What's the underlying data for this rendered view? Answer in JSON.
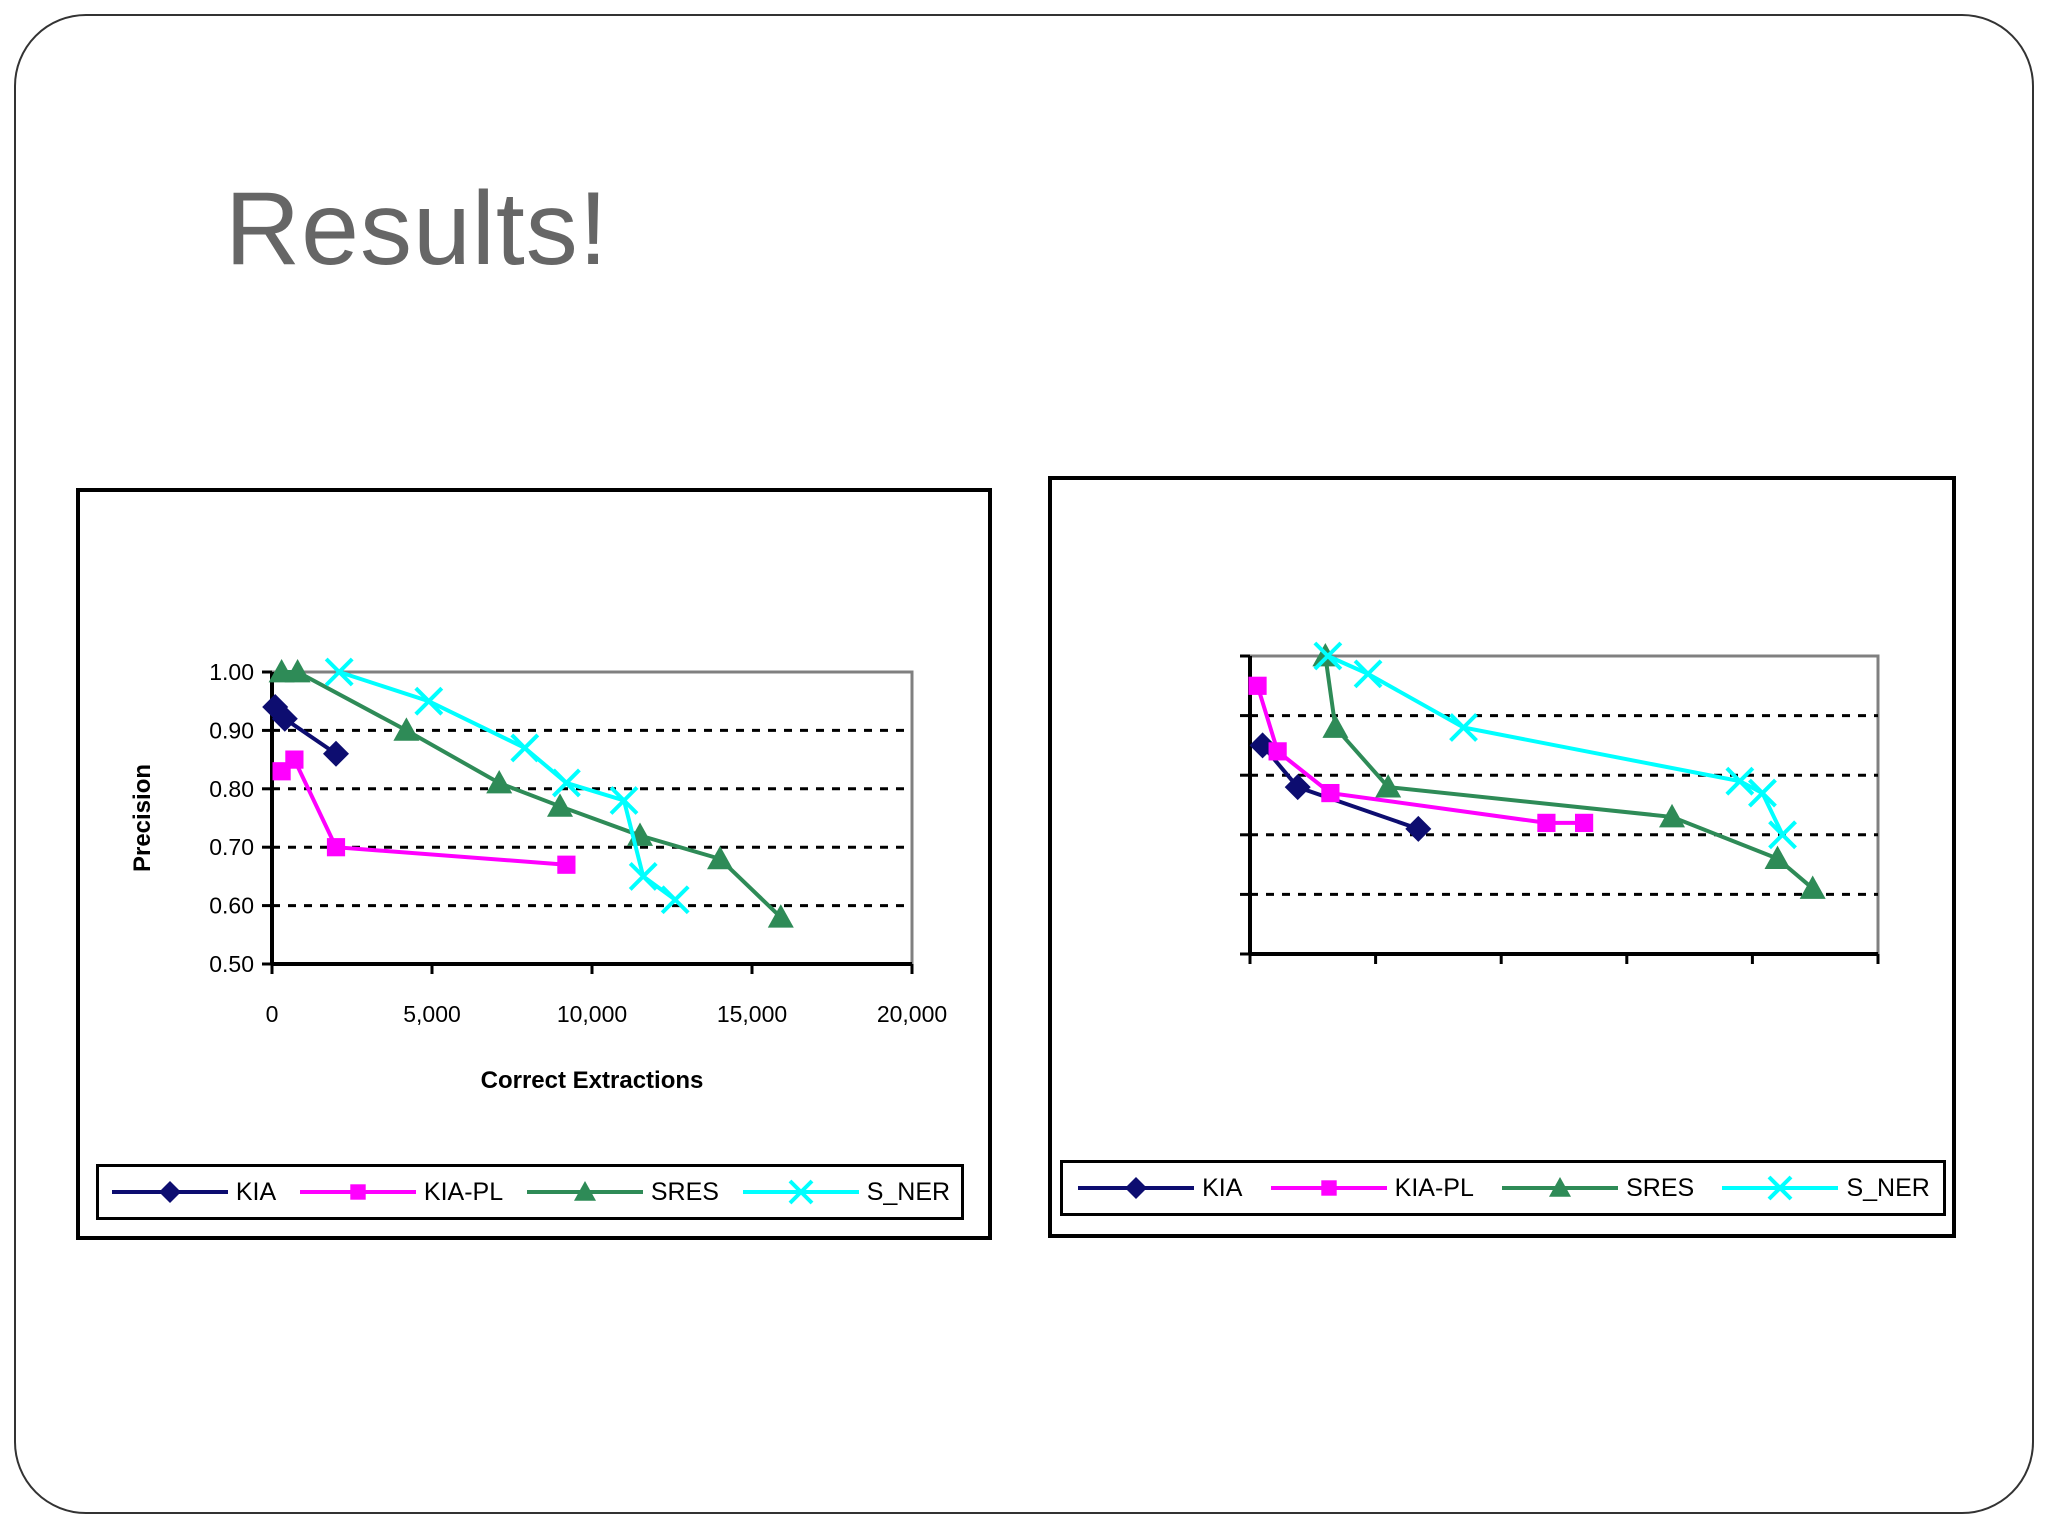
{
  "slide": {
    "title": "Results!"
  },
  "chart_data": [
    {
      "type": "line",
      "xlabel": "Correct Extractions",
      "ylabel": "Precision",
      "xlim": [
        0,
        20000
      ],
      "ylim": [
        0.5,
        1.0
      ],
      "x_ticks": [
        0,
        5000,
        10000,
        15000,
        20000
      ],
      "x_tick_labels": [
        "0",
        "5,000",
        "10,000",
        "15,000",
        "20,000"
      ],
      "y_ticks": [
        0.5,
        0.6,
        0.7,
        0.8,
        0.9,
        1.0
      ],
      "y_tick_labels": [
        "0.50",
        "0.60",
        "0.70",
        "0.80",
        "0.90",
        "1.00"
      ],
      "grid": "horizontal dotted",
      "legend": "bottom",
      "series": [
        {
          "name": "KIA",
          "color": "#0d0d70",
          "marker": "diamond",
          "points": [
            [
              100,
              0.94
            ],
            [
              400,
              0.92
            ],
            [
              2000,
              0.86
            ]
          ]
        },
        {
          "name": "KIA-PL",
          "color": "#ff00ff",
          "marker": "square",
          "points": [
            [
              300,
              0.83
            ],
            [
              700,
              0.85
            ],
            [
              2000,
              0.7
            ],
            [
              9200,
              0.67
            ]
          ]
        },
        {
          "name": "SRES",
          "color": "#2e8b57",
          "marker": "triangle",
          "points": [
            [
              300,
              1.0
            ],
            [
              800,
              1.0
            ],
            [
              4200,
              0.9
            ],
            [
              7100,
              0.81
            ],
            [
              9000,
              0.77
            ],
            [
              11500,
              0.72
            ],
            [
              14000,
              0.68
            ],
            [
              15900,
              0.58
            ]
          ]
        },
        {
          "name": "S_NER",
          "color": "#00ffff",
          "marker": "x",
          "points": [
            [
              2100,
              1.0
            ],
            [
              4900,
              0.95
            ],
            [
              7900,
              0.87
            ],
            [
              9200,
              0.81
            ],
            [
              11000,
              0.78
            ],
            [
              11600,
              0.65
            ],
            [
              12600,
              0.61
            ]
          ]
        }
      ]
    },
    {
      "type": "line",
      "xlabel": "",
      "ylabel": "",
      "xlim": [
        0,
        25
      ],
      "ylim": [
        0.5,
        1.0
      ],
      "x_ticks": [
        0,
        5,
        10,
        15,
        20,
        25
      ],
      "y_ticks": [
        0.5,
        0.6,
        0.7,
        0.8,
        0.9,
        1.0
      ],
      "grid": "horizontal dotted",
      "legend": "bottom",
      "series": [
        {
          "name": "KIA",
          "color": "#0d0d70",
          "marker": "diamond",
          "points": [
            [
              0.5,
              0.85
            ],
            [
              1.9,
              0.78
            ],
            [
              6.7,
              0.71
            ]
          ]
        },
        {
          "name": "KIA-PL",
          "color": "#ff00ff",
          "marker": "square",
          "points": [
            [
              0.3,
              0.95
            ],
            [
              1.1,
              0.84
            ],
            [
              3.2,
              0.77
            ],
            [
              11.8,
              0.72
            ],
            [
              13.3,
              0.72
            ]
          ]
        },
        {
          "name": "SRES",
          "color": "#2e8b57",
          "marker": "triangle",
          "points": [
            [
              3.0,
              1.0
            ],
            [
              3.4,
              0.88
            ],
            [
              5.5,
              0.78
            ],
            [
              16.8,
              0.73
            ],
            [
              21.0,
              0.66
            ],
            [
              22.4,
              0.61
            ]
          ]
        },
        {
          "name": "S_NER",
          "color": "#00ffff",
          "marker": "x",
          "points": [
            [
              3.1,
              1.0
            ],
            [
              4.7,
              0.97
            ],
            [
              8.5,
              0.88
            ],
            [
              19.5,
              0.79
            ],
            [
              20.4,
              0.77
            ],
            [
              21.2,
              0.7
            ]
          ]
        }
      ]
    }
  ]
}
